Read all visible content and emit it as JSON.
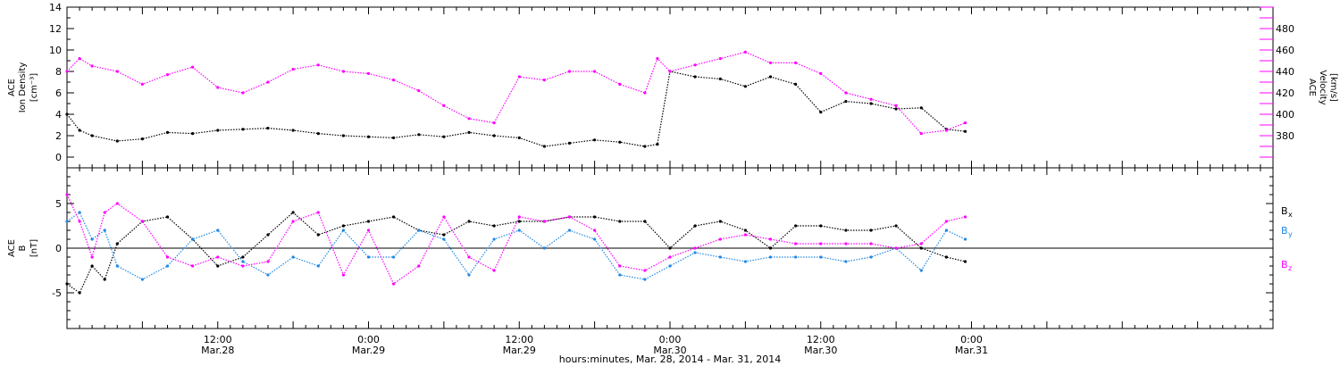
{
  "colors": {
    "black": "#000000",
    "magenta": "#ff00ff",
    "blue": "#1f88e5",
    "background": "#ffffff"
  },
  "time_axis": {
    "xlabel": "hours:minutes, Mar. 28, 2014 - Mar. 31, 2014",
    "range_hours": [
      0,
      96
    ],
    "ticks": [
      {
        "hours": 12,
        "time": "12:00",
        "date": "Mar.28"
      },
      {
        "hours": 24,
        "time": "0:00",
        "date": "Mar.29"
      },
      {
        "hours": 36,
        "time": "12:00",
        "date": "Mar.29"
      },
      {
        "hours": 48,
        "time": "0:00",
        "date": "Mar.30"
      },
      {
        "hours": 60,
        "time": "12:00",
        "date": "Mar.30"
      },
      {
        "hours": 72,
        "time": "0:00",
        "date": "Mar.31"
      }
    ]
  },
  "chart_data": [
    {
      "type": "scatter",
      "name": "plasma-panel",
      "left_axis": {
        "label_lines": [
          "ACE",
          "Ion Density",
          "[cm⁻³]"
        ],
        "ylim": [
          -1,
          14
        ],
        "tick_labels": [
          "0",
          "2",
          "4",
          "6",
          "8",
          "10",
          "12",
          "14"
        ],
        "color": "#000000"
      },
      "right_axis": {
        "label_lines": [
          "ACE",
          "Velocity",
          "[km/s]"
        ],
        "ylim": [
          350,
          500
        ],
        "tick_labels": [
          "380",
          "400",
          "420",
          "440",
          "460",
          "480"
        ],
        "color": "#ff00ff"
      },
      "series": [
        {
          "name": "Ion Density",
          "color": "#000000",
          "axis": "left",
          "x": [
            0,
            1,
            2,
            4,
            6,
            8,
            10,
            12,
            14,
            16,
            18,
            20,
            22,
            24,
            26,
            28,
            30,
            32,
            34,
            36,
            38,
            40,
            42,
            44,
            46,
            47,
            48,
            50,
            52,
            54,
            56,
            58,
            60,
            62,
            64,
            66,
            68,
            70,
            71.5
          ],
          "y": [
            4,
            2.5,
            2.0,
            1.5,
            1.7,
            2.3,
            2.2,
            2.5,
            2.6,
            2.7,
            2.5,
            2.2,
            2.0,
            1.9,
            1.8,
            2.1,
            1.9,
            2.3,
            2.0,
            1.8,
            1.0,
            1.3,
            1.6,
            1.4,
            1.0,
            1.2,
            8,
            7.5,
            7.3,
            6.6,
            7.5,
            6.8,
            4.2,
            5.2,
            5.0,
            4.5,
            4.6,
            2.6,
            2.4
          ]
        },
        {
          "name": "Velocity",
          "color": "#ff00ff",
          "axis": "right",
          "x": [
            0,
            1,
            2,
            4,
            6,
            8,
            10,
            12,
            14,
            16,
            18,
            20,
            22,
            24,
            26,
            28,
            30,
            32,
            34,
            36,
            38,
            40,
            42,
            44,
            46,
            47,
            48,
            50,
            52,
            54,
            56,
            58,
            60,
            62,
            64,
            66,
            68,
            70,
            71.5
          ],
          "y": [
            440,
            452,
            445,
            440,
            428,
            437,
            444,
            425,
            420,
            430,
            442,
            446,
            440,
            438,
            432,
            422,
            408,
            396,
            392,
            435,
            432,
            440,
            440,
            428,
            420,
            452,
            440,
            446,
            452,
            458,
            448,
            448,
            438,
            420,
            414,
            408,
            382,
            385,
            392
          ]
        }
      ]
    },
    {
      "type": "scatter",
      "name": "imf-panel",
      "left_axis": {
        "label_lines": [
          "ACE",
          "B",
          "[nT]"
        ],
        "ylim": [
          -9,
          9
        ],
        "tick_labels": [
          "-5",
          "0",
          "5"
        ],
        "color": "#000000"
      },
      "legend": [
        {
          "label": "B",
          "sub": "x",
          "color": "#000000"
        },
        {
          "label": "B",
          "sub": "y",
          "color": "#1f88e5"
        },
        {
          "label": "B",
          "sub": "z",
          "color": "#ff00ff"
        }
      ],
      "legend_position": "right",
      "series": [
        {
          "name": "Bx",
          "color": "#000000",
          "x": [
            0,
            1,
            2,
            3,
            4,
            6,
            8,
            10,
            12,
            14,
            16,
            18,
            20,
            22,
            24,
            26,
            28,
            30,
            32,
            34,
            36,
            38,
            40,
            42,
            44,
            46,
            48,
            50,
            52,
            54,
            56,
            58,
            60,
            62,
            64,
            66,
            68,
            70,
            71.5
          ],
          "y": [
            -4,
            -5,
            -2,
            -3.5,
            0.5,
            3,
            3.5,
            1,
            -2,
            -1,
            1.5,
            4,
            1.5,
            2.5,
            3,
            3.5,
            2,
            1.5,
            3,
            2.5,
            3,
            3,
            3.5,
            3.5,
            3,
            3,
            0,
            2.5,
            3,
            2,
            0,
            2.5,
            2.5,
            2,
            2,
            2.5,
            0,
            -1,
            -1.5
          ]
        },
        {
          "name": "By",
          "color": "#1f88e5",
          "x": [
            0,
            1,
            2,
            3,
            4,
            6,
            8,
            10,
            12,
            14,
            16,
            18,
            20,
            22,
            24,
            26,
            28,
            30,
            32,
            34,
            36,
            38,
            40,
            42,
            44,
            46,
            48,
            50,
            52,
            54,
            56,
            58,
            60,
            62,
            64,
            66,
            68,
            70,
            71.5
          ],
          "y": [
            3,
            4,
            1,
            2,
            -2,
            -3.5,
            -2,
            1,
            2,
            -1.5,
            -3,
            -1,
            -2,
            2,
            -1,
            -1,
            2,
            1,
            -3,
            1,
            2,
            0,
            2,
            1,
            -3,
            -3.5,
            -2,
            -0.5,
            -1,
            -1.5,
            -1,
            -1,
            -1,
            -1.5,
            -1,
            0,
            -2.5,
            2,
            1
          ]
        },
        {
          "name": "Bz",
          "color": "#ff00ff",
          "x": [
            0,
            1,
            2,
            3,
            4,
            6,
            8,
            10,
            12,
            14,
            16,
            18,
            20,
            22,
            24,
            26,
            28,
            30,
            32,
            34,
            36,
            38,
            40,
            42,
            44,
            46,
            48,
            50,
            52,
            54,
            56,
            58,
            60,
            62,
            64,
            66,
            68,
            70,
            71.5
          ],
          "y": [
            6,
            3,
            -1,
            4,
            5,
            3,
            -1,
            -2,
            -1,
            -2,
            -1.5,
            3,
            4,
            -3,
            2,
            -4,
            -2,
            3.5,
            -1,
            -2.5,
            3.5,
            3,
            3.5,
            2,
            -2,
            -2.5,
            -1,
            0,
            1,
            1.5,
            1,
            0.5,
            0.5,
            0.5,
            0.5,
            0,
            0.5,
            3,
            3.5
          ]
        }
      ]
    }
  ]
}
